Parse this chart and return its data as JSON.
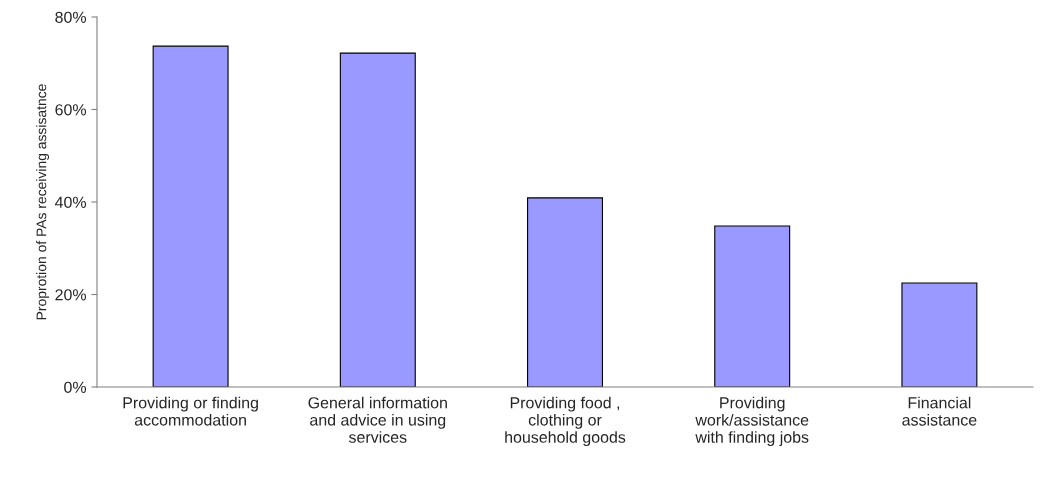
{
  "chart_data": {
    "type": "bar",
    "categories": [
      "Providing or finding\naccommodation",
      "General information\nand advice in using\nservices",
      "Providing food ,\nclothing or\nhousehold goods",
      "Providing\nwork/assistance\nwith finding jobs",
      "Financial\nassistance"
    ],
    "values": [
      73.7,
      72.2,
      40.9,
      34.8,
      22.5
    ],
    "color": "#9999ff",
    "ylabel": "Proprotion of PAs receiving assisatnce",
    "ylim": [
      0,
      80
    ],
    "yticks": [
      {
        "value": 0,
        "label": "0%"
      },
      {
        "value": 20,
        "label": "20%"
      },
      {
        "value": 40,
        "label": "40%"
      },
      {
        "value": 60,
        "label": "60%"
      },
      {
        "value": 80,
        "label": "80%"
      }
    ],
    "grid": false,
    "legend": false
  }
}
